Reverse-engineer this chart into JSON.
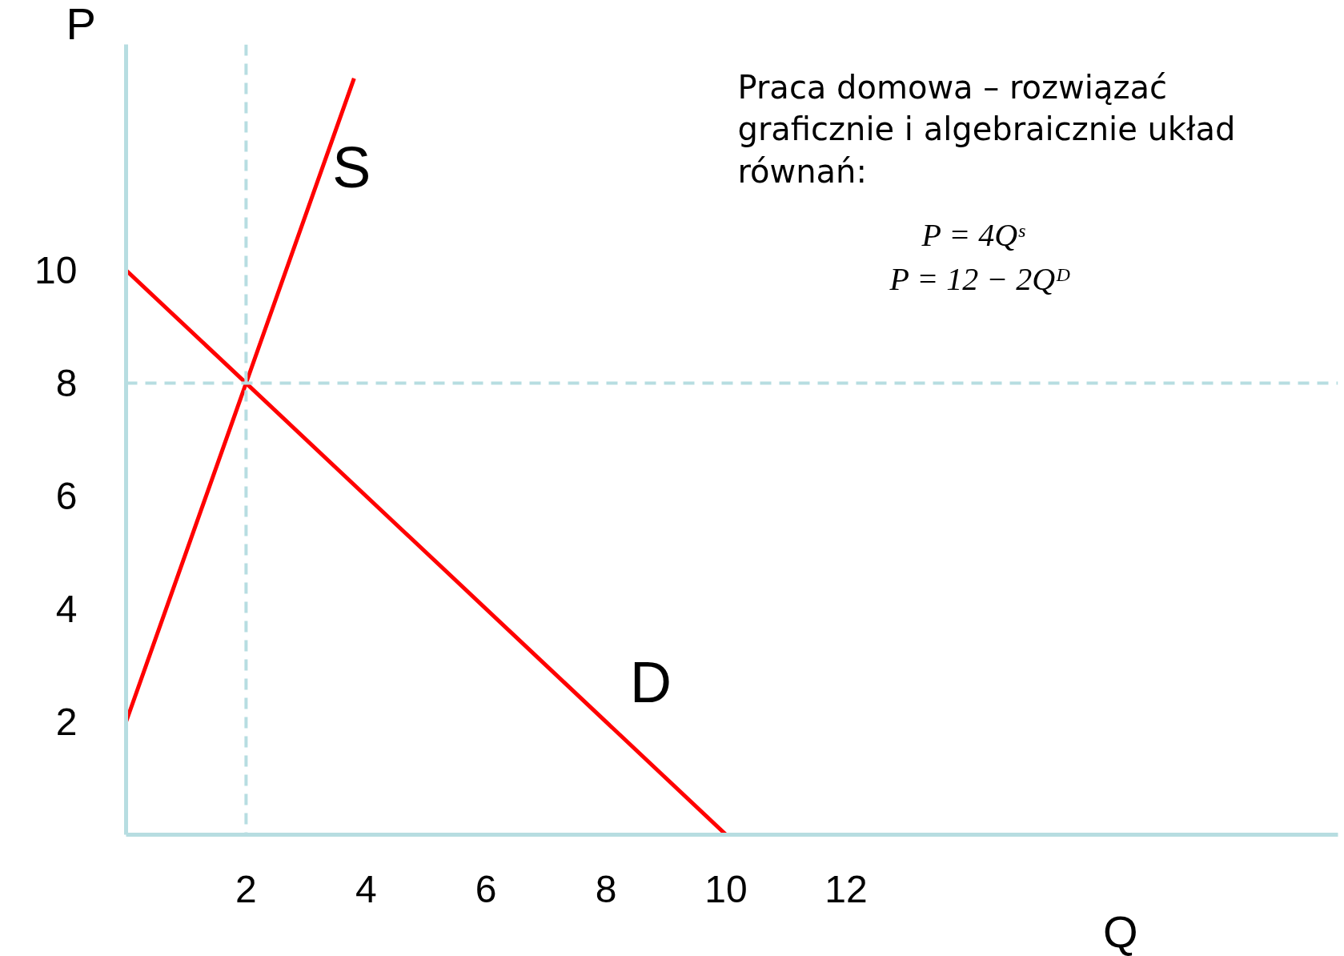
{
  "chart_data": {
    "type": "line",
    "xlabel": "Q",
    "ylabel": "P",
    "xlim": [
      0,
      20.2
    ],
    "ylim": [
      0,
      14
    ],
    "xticks": [
      2,
      4,
      6,
      8,
      10,
      12
    ],
    "yticks": [
      2,
      4,
      6,
      8,
      10
    ],
    "grid": false,
    "marker": "none",
    "line_style": "solid",
    "series": [
      {
        "name": "S",
        "color": "#ff0000",
        "x": [
          0,
          2,
          3.8
        ],
        "values": [
          2,
          8,
          13.4
        ]
      },
      {
        "name": "D",
        "color": "#ff0000",
        "x": [
          0,
          10
        ],
        "values": [
          10,
          0
        ]
      }
    ],
    "ref_lines": [
      {
        "axis": "x",
        "value": 2,
        "color": "#b7dde1",
        "line_style": "dashed"
      },
      {
        "axis": "y",
        "value": 8,
        "color": "#b7dde1",
        "line_style": "dashed"
      }
    ],
    "annotations": [
      "Praca domowa – rozwiązać graficznie i algebraicznie układ równań:",
      "P = 4Qˢ",
      "P = 12 − 2Qᴰ"
    ]
  }
}
